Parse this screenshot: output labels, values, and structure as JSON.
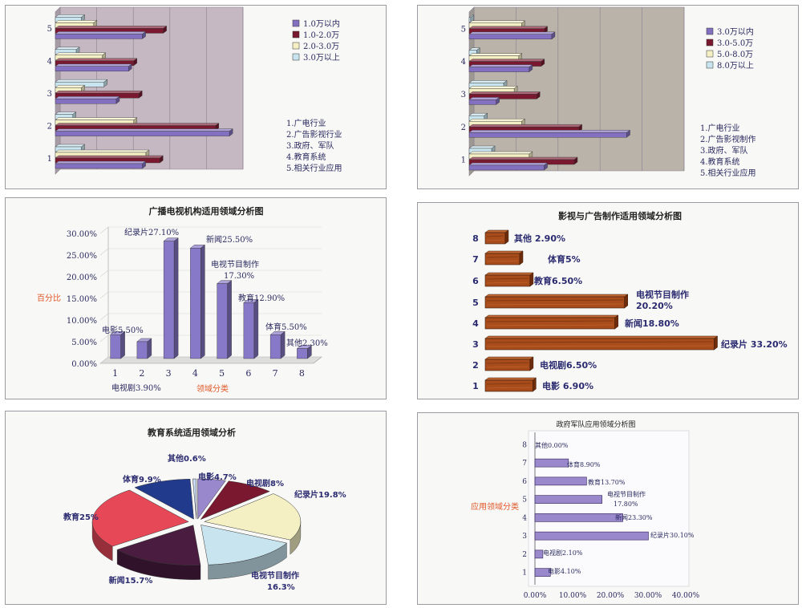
{
  "chart_data": [
    {
      "id": "p1",
      "type": "bar",
      "orientation": "horizontal",
      "categories": [
        "1",
        "2",
        "3",
        "4",
        "5"
      ],
      "series": [
        {
          "name": "3.0万以上",
          "color": "#c8e4ee",
          "values": [
            15,
            10,
            28,
            12,
            15
          ]
        },
        {
          "name": "2.0-3.0万",
          "color": "#f4f0c4",
          "values": [
            52,
            45,
            15,
            27,
            22
          ]
        },
        {
          "name": "1.0-2.0万",
          "color": "#7a1830",
          "values": [
            60,
            92,
            48,
            45,
            62
          ]
        },
        {
          "name": "1.0万以内",
          "color": "#8470c0",
          "values": [
            50,
            100,
            35,
            42,
            50
          ]
        }
      ],
      "xlim": [
        0,
        105
      ],
      "annotation": [
        "1.广电行业",
        "2.广告影视行业",
        "3.政府、军队",
        "4.教育系统",
        "5.相关行业应用"
      ]
    },
    {
      "id": "p2",
      "type": "bar",
      "orientation": "horizontal",
      "categories": [
        "1",
        "2",
        "3",
        "4",
        "5"
      ],
      "series": [
        {
          "name": "8.0万以上",
          "color": "#c8e4ee",
          "values": [
            15,
            10,
            23,
            5,
            1
          ]
        },
        {
          "name": "5.0-8.0万",
          "color": "#f4f0c4",
          "values": [
            40,
            35,
            30,
            33,
            35
          ]
        },
        {
          "name": "3.0-5.0万",
          "color": "#7a1830",
          "values": [
            70,
            73,
            45,
            48,
            50
          ]
        },
        {
          "name": "3.0万以内",
          "color": "#8470c0",
          "values": [
            50,
            105,
            18,
            40,
            55
          ]
        }
      ],
      "xlim": [
        0,
        140
      ],
      "annotation": [
        "1.广电行业",
        "2.广告影视制作",
        "3.政府、军队",
        "4.教育系统",
        "5.相关行业应用"
      ]
    },
    {
      "id": "p3",
      "type": "bar",
      "title": "广播电视机构适用领域分析图",
      "xlabel": "领域分类",
      "ylabel": "百分比",
      "categories": [
        "1",
        "2",
        "3",
        "4",
        "5",
        "6",
        "7",
        "8"
      ],
      "values": [
        5.5,
        3.9,
        27.1,
        25.5,
        17.3,
        12.9,
        5.5,
        2.3
      ],
      "yticks": [
        "0.00%",
        "5.00%",
        "10.00%",
        "15.00%",
        "20.00%",
        "25.00%",
        "30.00%"
      ],
      "ylim": [
        0,
        30
      ],
      "labels": [
        "电影5.50%",
        "电视剧3.90%",
        "纪录片27.10%",
        "新闻25.50%",
        "电视节目制作",
        "17.30%",
        "教育12.90%",
        "体育5.50%",
        "其他2.30%"
      ],
      "color": "#8878c8"
    },
    {
      "id": "p4",
      "type": "bar",
      "orientation": "horizontal",
      "title": "影视与广告制作适用领域分析图",
      "categories": [
        "1",
        "2",
        "3",
        "4",
        "5",
        "6",
        "7",
        "8"
      ],
      "values": [
        6.9,
        6.5,
        33.2,
        18.8,
        20.2,
        6.5,
        5.0,
        2.9
      ],
      "labels": [
        "电影 6.90%",
        "电视剧6.50%",
        "纪录片 33.20%",
        "新闻18.80%",
        "电视节目制作",
        "20.20%",
        "教育6.50%",
        "体育5%",
        "其他 2.90%"
      ],
      "color": "#a84c1c"
    },
    {
      "id": "p5",
      "type": "pie",
      "title": "教育系统适用领域分析",
      "slices": [
        {
          "label": "电影4.7%",
          "value": 4.7,
          "color": "#9a88cc"
        },
        {
          "label": "电视剧8%",
          "value": 8.0,
          "color": "#7a1830"
        },
        {
          "label": "纪录片19.8%",
          "value": 19.8,
          "color": "#f4f0c4"
        },
        {
          "label": "电视节目制作",
          "value": 16.3,
          "color": "#c8e4ee"
        },
        {
          "label": "新闻15.7%",
          "value": 15.7,
          "color": "#4a1c40"
        },
        {
          "label": "教育25%",
          "value": 25.0,
          "color": "#e64858"
        },
        {
          "label": "体育9.9%",
          "value": 9.9,
          "color": "#223a8c"
        },
        {
          "label": "其他0.6%",
          "value": 0.6,
          "color": "#c8d8f0"
        }
      ],
      "extra_label": "16.3%"
    },
    {
      "id": "p6",
      "type": "bar",
      "orientation": "horizontal",
      "title": "政府军队应用领域分析图",
      "ylabel": "应用领域分类",
      "categories": [
        "1",
        "2",
        "3",
        "4",
        "5",
        "6",
        "7",
        "8"
      ],
      "values": [
        4.1,
        2.1,
        30.1,
        23.3,
        17.8,
        13.7,
        8.9,
        0.0
      ],
      "xticks": [
        "0.00%",
        "10.00%",
        "20.00%",
        "30.00%",
        "40.00%"
      ],
      "xlim": [
        0,
        40
      ],
      "labels": [
        "电影4.10%",
        "电视剧2.10%",
        "纪录片30.10%",
        "新闻23.30%",
        "电视节目制作",
        "17.80%",
        "教育13.70%",
        "体育8.90%",
        "其他0.00%"
      ],
      "color": "#9a88cc"
    }
  ]
}
